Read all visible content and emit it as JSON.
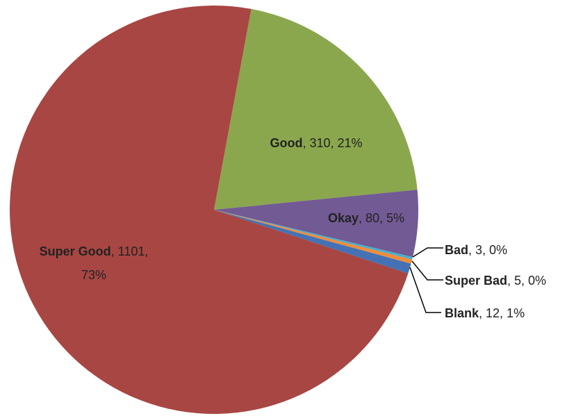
{
  "chart_data": {
    "type": "pie",
    "title": "",
    "slices": [
      {
        "category": "Good",
        "value": 310,
        "percent_label": "21%",
        "color": "#8BA74E"
      },
      {
        "category": "Okay",
        "value": 80,
        "percent_label": "5%",
        "color": "#725A94"
      },
      {
        "category": "Bad",
        "value": 3,
        "percent_label": "0%",
        "color": "#4AAECE"
      },
      {
        "category": "Super Bad",
        "value": 5,
        "percent_label": "0%",
        "color": "#F08C3C"
      },
      {
        "category": "Blank",
        "value": 12,
        "percent_label": "1%",
        "color": "#4472B4"
      },
      {
        "category": "Super Good",
        "value": 1101,
        "percent_label": "73%",
        "color": "#A84643"
      }
    ],
    "legend": "none"
  }
}
